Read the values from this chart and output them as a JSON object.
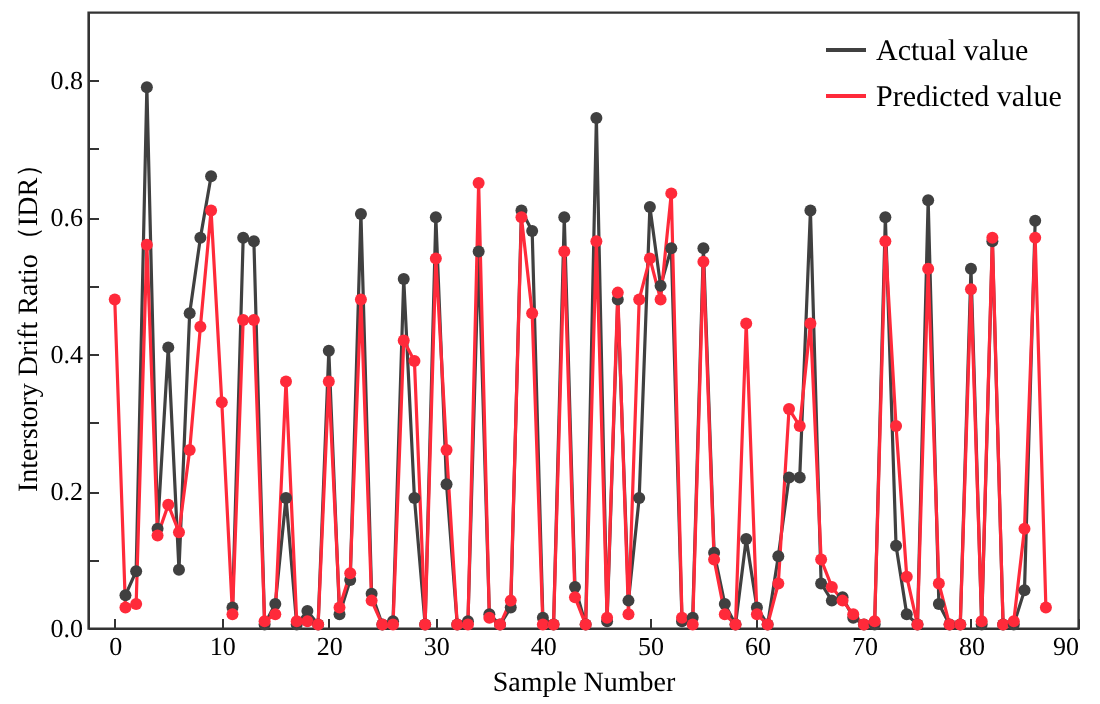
{
  "chart_data": {
    "type": "line",
    "xlabel": "Sample Number",
    "ylabel": "Interstory Drift Ratio（IDR）",
    "x": [
      0,
      1,
      2,
      3,
      4,
      5,
      6,
      7,
      8,
      9,
      10,
      11,
      12,
      13,
      14,
      15,
      16,
      17,
      18,
      19,
      20,
      21,
      22,
      23,
      24,
      25,
      26,
      27,
      28,
      29,
      30,
      31,
      32,
      33,
      34,
      35,
      36,
      37,
      38,
      39,
      40,
      41,
      42,
      43,
      44,
      45,
      46,
      47,
      48,
      49,
      50,
      51,
      52,
      53,
      54,
      55,
      56,
      57,
      58,
      59,
      60,
      61,
      62,
      63,
      64,
      65,
      66,
      67,
      68,
      69,
      70,
      71,
      72,
      73,
      74,
      75,
      76,
      77,
      78,
      79,
      80,
      81,
      82,
      83,
      84,
      85,
      86,
      87
    ],
    "series": [
      {
        "name": "Actual value",
        "color": "#404040",
        "values": [
          null,
          0.048,
          0.083,
          0.79,
          0.145,
          0.41,
          0.085,
          0.46,
          0.57,
          0.66,
          null,
          0.03,
          0.57,
          0.565,
          0.005,
          0.035,
          0.19,
          0.005,
          0.025,
          0.005,
          0.405,
          0.02,
          0.07,
          0.605,
          0.05,
          0.005,
          0.01,
          0.51,
          0.19,
          0.005,
          0.6,
          0.21,
          0.005,
          0.01,
          0.55,
          0.02,
          0.005,
          0.03,
          0.61,
          0.58,
          0.015,
          0.005,
          0.6,
          0.06,
          0.005,
          0.745,
          0.01,
          0.48,
          0.04,
          0.19,
          0.615,
          0.5,
          0.555,
          0.01,
          0.015,
          0.555,
          0.11,
          0.035,
          0.005,
          0.13,
          0.03,
          0.005,
          0.105,
          0.22,
          0.22,
          0.61,
          0.065,
          0.04,
          0.045,
          0.015,
          0.005,
          0.005,
          0.6,
          0.12,
          0.02,
          0.005,
          0.625,
          0.035,
          0.005,
          0.005,
          0.525,
          0.005,
          0.565,
          0.005,
          0.005,
          0.055,
          0.595,
          null
        ]
      },
      {
        "name": "Predicted value",
        "color": "#ff2a3a",
        "values": [
          0.48,
          0.03,
          0.035,
          0.56,
          0.135,
          0.18,
          0.14,
          0.26,
          0.44,
          0.61,
          0.33,
          0.02,
          0.45,
          0.45,
          0.01,
          0.02,
          0.36,
          0.01,
          0.01,
          0.005,
          0.36,
          0.03,
          0.08,
          0.48,
          0.04,
          0.005,
          0.005,
          0.42,
          0.39,
          0.005,
          0.54,
          0.26,
          0.005,
          0.005,
          0.65,
          0.015,
          0.005,
          0.04,
          0.6,
          0.46,
          0.005,
          0.005,
          0.55,
          0.045,
          0.005,
          0.565,
          0.015,
          0.49,
          0.02,
          0.48,
          0.54,
          0.48,
          0.635,
          0.015,
          0.005,
          0.535,
          0.1,
          0.02,
          0.005,
          0.445,
          0.02,
          0.005,
          0.065,
          0.32,
          0.295,
          0.445,
          0.1,
          0.06,
          0.04,
          0.02,
          0.005,
          0.01,
          0.565,
          0.295,
          0.075,
          0.005,
          0.525,
          0.065,
          0.005,
          0.005,
          0.495,
          0.01,
          0.57,
          0.005,
          0.01,
          0.145,
          0.57,
          0.03
        ]
      }
    ],
    "xlim": [
      -2.5,
      90
    ],
    "xticks": [
      0,
      10,
      20,
      30,
      40,
      50,
      60,
      70,
      80,
      90
    ],
    "ylim": [
      0,
      0.9
    ],
    "yticks": [
      {
        "value": 0,
        "label": "0.0"
      },
      {
        "value": 0.1,
        "label": null
      },
      {
        "value": 0.2,
        "label": "0.2"
      },
      {
        "value": 0.3,
        "label": null
      },
      {
        "value": 0.4,
        "label": "0.4"
      },
      {
        "value": 0.5,
        "label": null
      },
      {
        "value": 0.6,
        "label": "0.6"
      },
      {
        "value": 0.7,
        "label": null
      },
      {
        "value": 0.8,
        "label": "0.8"
      }
    ],
    "marker": "circle",
    "line_style": "solid",
    "legend": "top right",
    "grid": false
  }
}
